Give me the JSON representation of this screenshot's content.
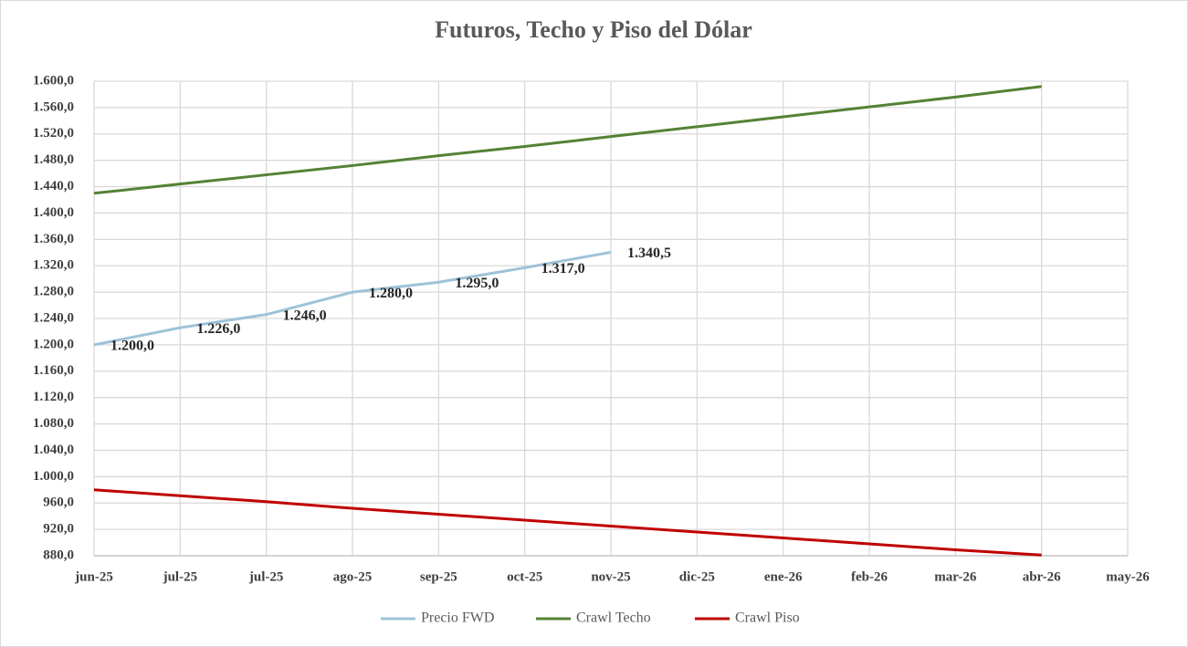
{
  "chart_data": {
    "type": "line",
    "title": "Futuros, Techo y Piso del Dólar",
    "categories": [
      "jun-25",
      "jul-25",
      "jul-25",
      "ago-25",
      "sep-25",
      "oct-25",
      "nov-25",
      "dic-25",
      "ene-26",
      "feb-26",
      "mar-26",
      "abr-26",
      "may-26"
    ],
    "series": [
      {
        "name": "Precio FWD",
        "color": "#9dc3d8",
        "values": [
          1200,
          1226,
          1246,
          1280,
          1295,
          1317,
          1340.5,
          null,
          null,
          null,
          null,
          null,
          null
        ],
        "value_labels": [
          "1.200,0",
          "1.226,0",
          "1.246,0",
          "1.280,0",
          "1.295,0",
          "1.317,0",
          "1.340,5",
          null,
          null,
          null,
          null,
          null,
          null
        ]
      },
      {
        "name": "Crawl Techo",
        "color": "#548235",
        "values": [
          1430,
          1444,
          1458,
          1472,
          1487,
          1501,
          1516,
          1531,
          1546,
          1561,
          1576,
          1592,
          null
        ]
      },
      {
        "name": "Crawl Piso",
        "color": "#c00000",
        "values": [
          980,
          971,
          962,
          952,
          943,
          934,
          925,
          916,
          907,
          898,
          889,
          881,
          null
        ]
      }
    ],
    "ylim": [
      880,
      1600
    ],
    "yticks": [
      {
        "value": 880,
        "label": "880,0"
      },
      {
        "value": 920,
        "label": "920,0"
      },
      {
        "value": 960,
        "label": "960,0"
      },
      {
        "value": 1000,
        "label": "1.000,0"
      },
      {
        "value": 1040,
        "label": "1.040,0"
      },
      {
        "value": 1080,
        "label": "1.080,0"
      },
      {
        "value": 1120,
        "label": "1.120,0"
      },
      {
        "value": 1160,
        "label": "1.160,0"
      },
      {
        "value": 1200,
        "label": "1.200,0"
      },
      {
        "value": 1240,
        "label": "1.240,0"
      },
      {
        "value": 1280,
        "label": "1.280,0"
      },
      {
        "value": 1320,
        "label": "1.320,0"
      },
      {
        "value": 1360,
        "label": "1.360,0"
      },
      {
        "value": 1400,
        "label": "1.400,0"
      },
      {
        "value": 1440,
        "label": "1.440,0"
      },
      {
        "value": 1480,
        "label": "1.480,0"
      },
      {
        "value": 1520,
        "label": "1.520,0"
      },
      {
        "value": 1560,
        "label": "1.560,0"
      },
      {
        "value": 1600,
        "label": "1.600,0"
      }
    ],
    "grid": true,
    "legend": "bottom"
  }
}
